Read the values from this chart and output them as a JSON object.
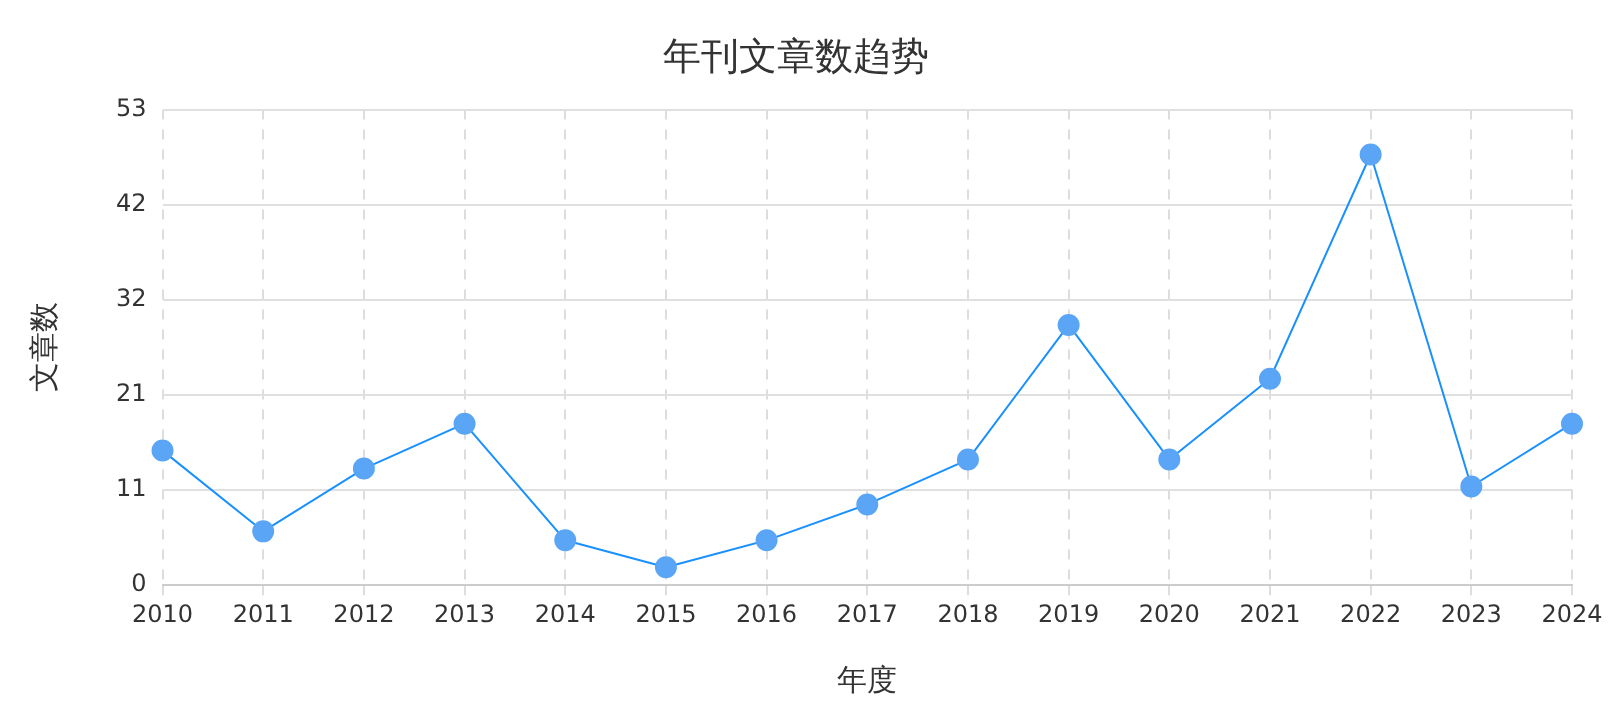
{
  "chart_data": {
    "type": "line",
    "title": "年刊文章数趋势",
    "xlabel": "年度",
    "ylabel": "文章数",
    "categories": [
      "2010",
      "2011",
      "2012",
      "2013",
      "2014",
      "2015",
      "2016",
      "2017",
      "2018",
      "2019",
      "2020",
      "2021",
      "2022",
      "2023",
      "2024"
    ],
    "series": [
      {
        "color": "#1890ff",
        "values": [
          15,
          6,
          13,
          18,
          5,
          2,
          5,
          9,
          14,
          29,
          14,
          23,
          48,
          11,
          18
        ]
      }
    ],
    "ylim": [
      0,
      53
    ],
    "yticks": [
      0,
      {
        "value": 10.6,
        "label": "11"
      },
      {
        "value": 21.2,
        "label": "21"
      },
      {
        "value": 31.8,
        "label": "32"
      },
      {
        "value": 42.4,
        "label": "42"
      },
      53
    ],
    "grid": true,
    "marker": "circle",
    "line_style": "solid"
  }
}
